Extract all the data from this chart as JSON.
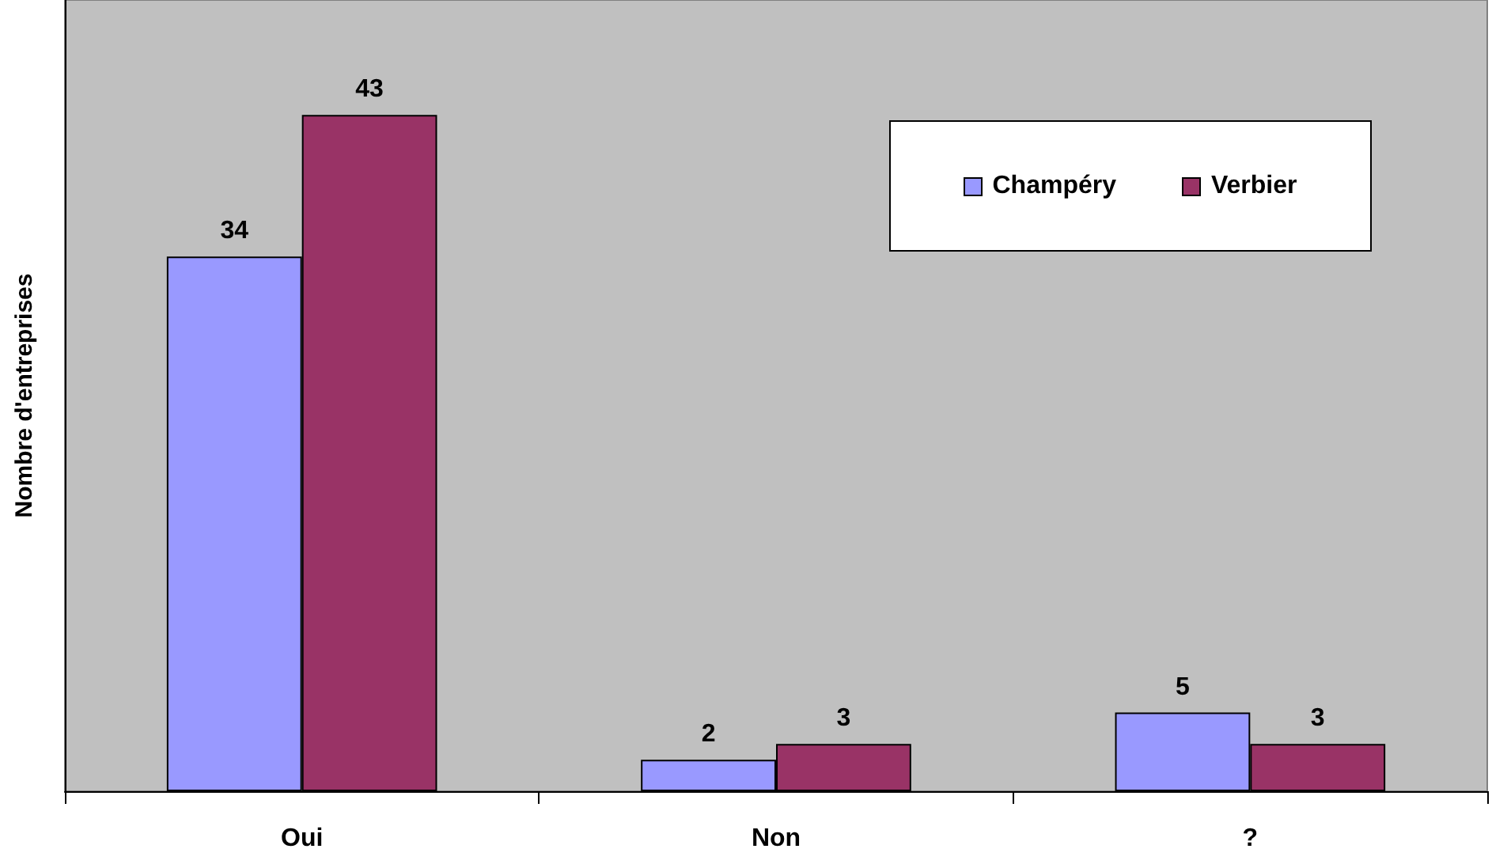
{
  "chart_data": {
    "type": "bar",
    "ylabel": "Nombre d'entreprises",
    "categories": [
      "Oui",
      "Non",
      "?"
    ],
    "series": [
      {
        "name": "Champéry",
        "color": "#9999ff",
        "values": [
          34,
          2,
          5
        ]
      },
      {
        "name": "Verbier",
        "color": "#993366",
        "values": [
          43,
          3,
          3
        ]
      }
    ],
    "data_labels": true,
    "legend": "top right",
    "grid": false
  }
}
